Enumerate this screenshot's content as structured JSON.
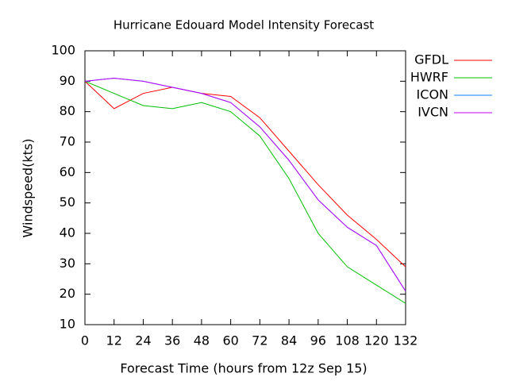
{
  "chart_data": {
    "type": "line",
    "title": "Hurricane Edouard Model Intensity Forecast",
    "x_label": "Forecast Time (hours from 12z Sep 15)",
    "y_label": "Windspeed(kts)",
    "x": [
      0,
      12,
      24,
      36,
      48,
      60,
      72,
      84,
      96,
      108,
      120,
      132
    ],
    "series": [
      {
        "name": "GFDL",
        "color": "#ff0000",
        "values": [
          90,
          81,
          86,
          88,
          86,
          85,
          78,
          67,
          56,
          46,
          38,
          29
        ]
      },
      {
        "name": "HWRF",
        "color": "#00c000",
        "values": [
          90,
          86,
          82,
          81,
          83,
          80,
          72,
          58,
          40,
          29,
          23,
          17
        ]
      },
      {
        "name": "ICON",
        "color": "#0080ff",
        "values": [
          90,
          91,
          90,
          88,
          86,
          83,
          75,
          64,
          51,
          42,
          36,
          21
        ]
      },
      {
        "name": "IVCN",
        "color": "#c000ff",
        "values": [
          90,
          91,
          90,
          88,
          86,
          83,
          75,
          64,
          51,
          42,
          36,
          21
        ]
      }
    ],
    "xlim": [
      0,
      132
    ],
    "xticks": [
      0,
      12,
      24,
      36,
      48,
      60,
      72,
      84,
      96,
      108,
      120,
      132
    ],
    "ylim": [
      10,
      100
    ],
    "yticks": [
      10,
      20,
      30,
      40,
      50,
      60,
      70,
      80,
      90,
      100
    ],
    "legend": "right",
    "grid": false
  }
}
